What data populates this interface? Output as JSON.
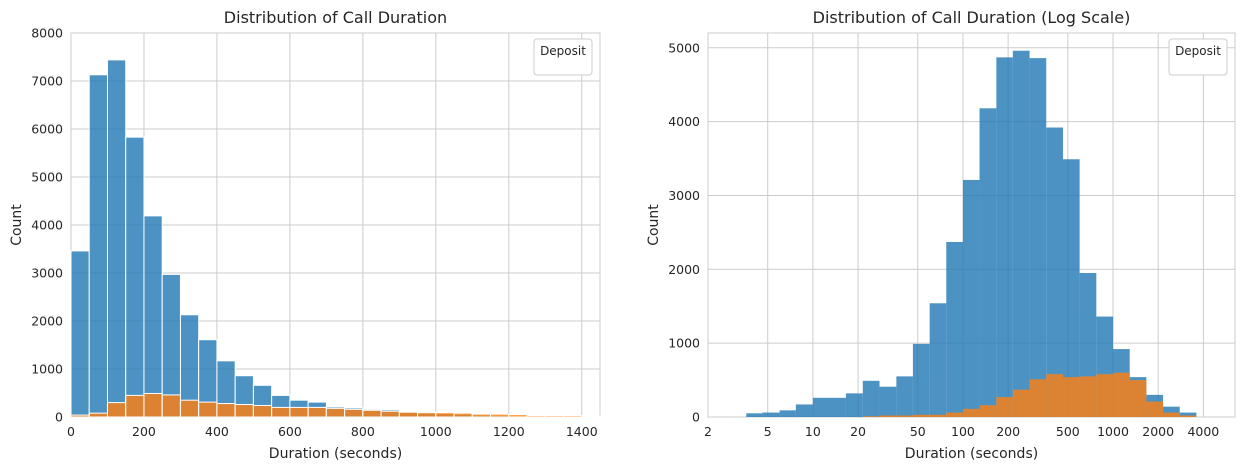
{
  "chart_data": [
    {
      "type": "bar",
      "stacked": true,
      "title": "Distribution of Call Duration",
      "xlabel": "Duration (seconds)",
      "ylabel": "Count",
      "xlim": [
        0,
        1450
      ],
      "ylim": [
        0,
        8000
      ],
      "xticks": [
        0,
        200,
        400,
        600,
        800,
        1000,
        1200,
        1400
      ],
      "yticks": [
        0,
        1000,
        2000,
        3000,
        4000,
        5000,
        6000,
        7000,
        8000
      ],
      "grid": true,
      "legend": {
        "title": "Deposit",
        "position": "top-right"
      },
      "bin_edges": [
        0,
        50,
        100,
        150,
        200,
        250,
        300,
        350,
        400,
        450,
        500,
        550,
        600,
        650,
        700,
        750,
        800,
        850,
        900,
        950,
        1000,
        1050,
        1100,
        1150,
        1200,
        1250,
        1300,
        1350,
        1400,
        1450
      ],
      "series": [
        {
          "color": "#1f77b4",
          "values": [
            3460,
            7130,
            7440,
            5830,
            4190,
            2970,
            2130,
            1610,
            1170,
            860,
            660,
            450,
            350,
            310,
            210,
            190,
            160,
            150,
            110,
            90,
            70,
            60,
            40,
            30,
            20,
            10,
            5,
            5,
            5
          ]
        },
        {
          "color": "#ff7f0e",
          "values": [
            40,
            80,
            300,
            450,
            490,
            460,
            350,
            310,
            280,
            260,
            240,
            200,
            200,
            200,
            180,
            160,
            140,
            120,
            100,
            90,
            90,
            80,
            60,
            60,
            50,
            30,
            30,
            30,
            20
          ]
        }
      ]
    },
    {
      "type": "bar",
      "stacked": false,
      "title": "Distribution of Call Duration (Log Scale)",
      "xlabel": "Duration (seconds)",
      "ylabel": "Count",
      "xscale": "log",
      "xlim": [
        2,
        6500
      ],
      "ylim": [
        0,
        5200
      ],
      "xticks": [
        2,
        5,
        10,
        20,
        50,
        100,
        200,
        500,
        1000,
        2000,
        4000
      ],
      "yticks": [
        0,
        1000,
        2000,
        3000,
        4000,
        5000
      ],
      "grid": true,
      "legend": {
        "title": "Deposit",
        "position": "top-right"
      },
      "bin_edges": [
        3.6,
        4.6,
        6,
        7.7,
        10,
        12.9,
        16.6,
        21.5,
        27.8,
        36,
        46.4,
        60,
        77.4,
        100,
        129,
        167,
        215,
        278,
        359,
        464,
        599,
        774,
        1000,
        1292,
        1668,
        2155,
        2783,
        3594
      ],
      "series": [
        {
          "color": "#1f77b4",
          "values": [
            50,
            60,
            90,
            170,
            260,
            260,
            320,
            490,
            410,
            550,
            990,
            1540,
            2370,
            3210,
            4180,
            4870,
            4960,
            4860,
            3920,
            3490,
            1950,
            1360,
            920,
            540,
            300,
            140,
            60
          ]
        },
        {
          "color": "#ff7f0e",
          "values": [
            0,
            0,
            0,
            0,
            0,
            0,
            0,
            10,
            20,
            20,
            30,
            30,
            60,
            110,
            160,
            270,
            370,
            510,
            580,
            540,
            550,
            580,
            600,
            500,
            210,
            60,
            20
          ]
        }
      ]
    }
  ]
}
